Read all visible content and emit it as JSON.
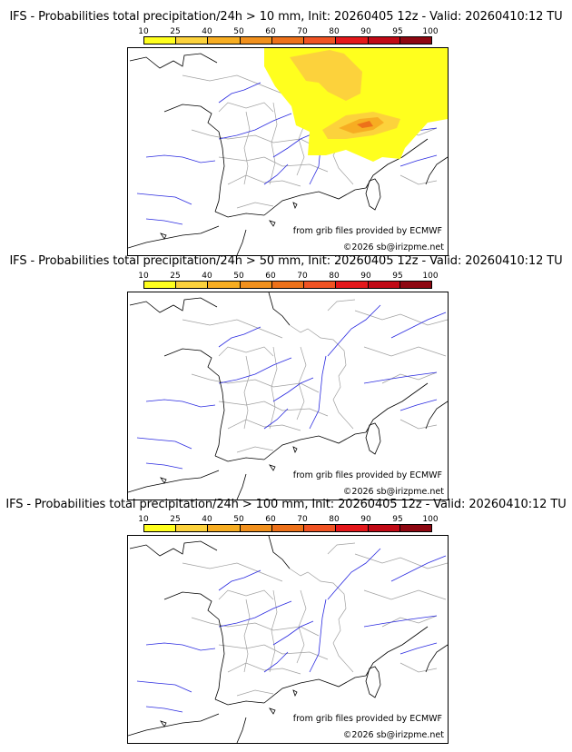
{
  "panels": [
    {
      "title": "IFS - Probabilities total precipitation/24h > 10 mm, Init: 20260405 12z - Valid: 20260410:12 TU",
      "has_field": true
    },
    {
      "title": "IFS - Probabilities total precipitation/24h > 50 mm, Init: 20260405 12z - Valid: 20260410:12 TU",
      "has_field": false
    },
    {
      "title": "IFS - Probabilities total precipitation/24h > 100 mm, Init: 20260405 12z - Valid: 20260410:12 TU",
      "has_field": false
    }
  ],
  "colorbar": {
    "ticks": [
      "10",
      "25",
      "40",
      "50",
      "60",
      "70",
      "80",
      "90",
      "95",
      "100"
    ],
    "colors": [
      "#ffff1e",
      "#fcd23c",
      "#f7ad22",
      "#f1901d",
      "#ed711a",
      "#f05323",
      "#e4181b",
      "#c10a16",
      "#8e0711"
    ]
  },
  "credit": "from grib files provided by ECMWF",
  "copyright": "©2026 sb@irizpme.net",
  "map_colors": {
    "coast": "#000000",
    "borders": "#a0a0a0",
    "rivers": "#2a2ae0",
    "field_light": "#ffff1e",
    "field_mid": "#fcd23c",
    "field_high": "#f7ad22",
    "field_peak": "#ed711a"
  }
}
